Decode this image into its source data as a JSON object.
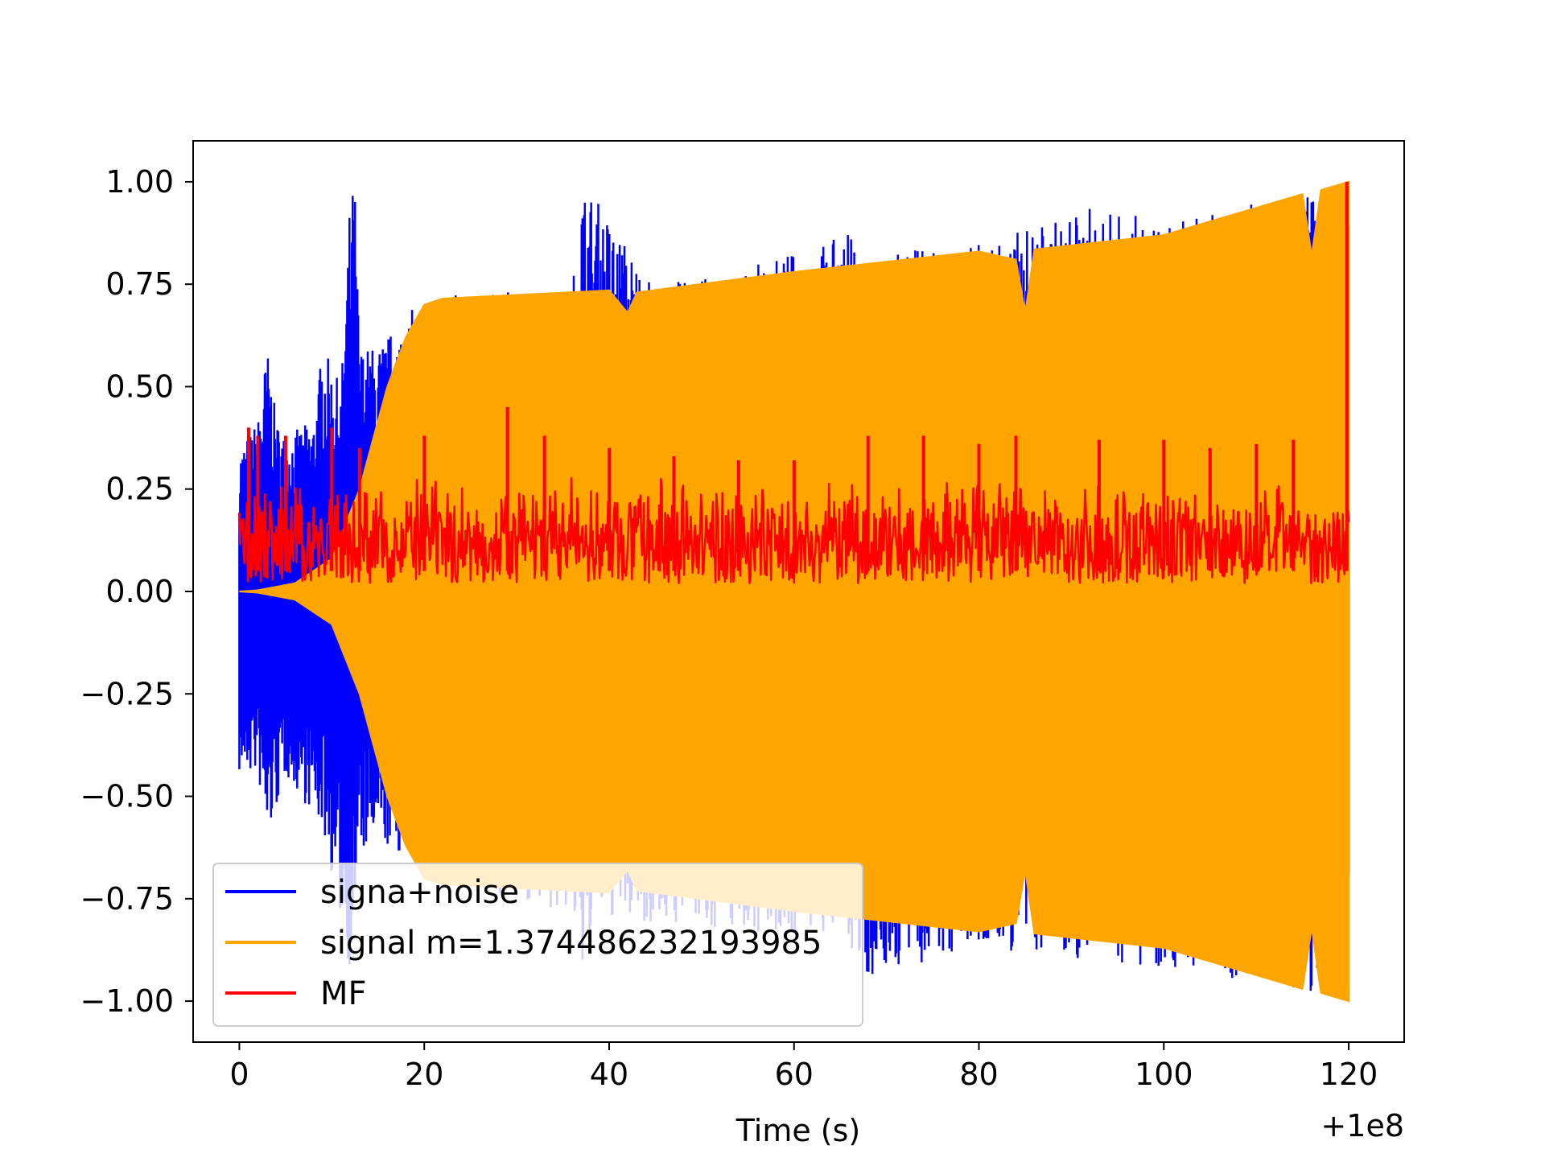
{
  "chart_data": {
    "type": "line",
    "title": "",
    "xlabel": "Time (s)",
    "ylabel": "",
    "x_offset_label": "+1e8",
    "xlim": [
      -5,
      126
    ],
    "ylim": [
      -1.1,
      1.1
    ],
    "x_ticks": [
      0,
      20,
      40,
      60,
      80,
      100,
      120
    ],
    "x_tick_labels": [
      "0",
      "20",
      "40",
      "60",
      "80",
      "100",
      "120"
    ],
    "y_ticks": [
      1.0,
      0.75,
      0.5,
      0.25,
      0.0,
      -0.25,
      -0.5,
      -0.75,
      -1.0
    ],
    "y_tick_labels": [
      "1.00",
      "0.75",
      "0.50",
      "0.25",
      "0.00",
      "−0.25",
      "−0.50",
      "−0.75",
      "−1.00"
    ],
    "grid": false,
    "legend_position": "lower-left",
    "series": [
      {
        "name": "signa+noise",
        "color": "#0000ff",
        "x_range": [
          0,
          120
        ],
        "upper_envelope": [
          [
            0,
            0.35
          ],
          [
            2,
            0.42
          ],
          [
            3,
            0.6
          ],
          [
            4,
            0.42
          ],
          [
            5,
            0.38
          ],
          [
            8,
            0.42
          ],
          [
            9,
            0.6
          ],
          [
            11,
            0.5
          ],
          [
            12,
            0.97
          ],
          [
            12.5,
            1.0
          ],
          [
            13,
            0.6
          ],
          [
            15,
            0.6
          ],
          [
            17,
            0.65
          ],
          [
            20,
            0.72
          ],
          [
            36,
            0.74
          ],
          [
            37,
            1.0
          ],
          [
            39,
            0.95
          ],
          [
            45,
            0.75
          ],
          [
            54,
            0.78
          ],
          [
            66,
            0.88
          ],
          [
            67,
            0.82
          ],
          [
            80,
            0.85
          ],
          [
            92,
            0.94
          ],
          [
            101,
            0.9
          ],
          [
            120,
            1.0
          ]
        ],
        "lower_envelope": [
          [
            0,
            -0.45
          ],
          [
            2,
            -0.45
          ],
          [
            3,
            -0.62
          ],
          [
            5,
            -0.45
          ],
          [
            9,
            -0.58
          ],
          [
            12,
            -0.93
          ],
          [
            13,
            -0.65
          ],
          [
            15,
            -0.62
          ],
          [
            20,
            -0.67
          ],
          [
            36,
            -0.8
          ],
          [
            37,
            -0.97
          ],
          [
            39,
            -0.8
          ],
          [
            66,
            -0.85
          ],
          [
            67,
            -0.95
          ],
          [
            80,
            -0.88
          ],
          [
            92,
            -0.9
          ],
          [
            101,
            -0.92
          ],
          [
            120,
            -1.0
          ]
        ]
      },
      {
        "name": "signal m=1.374486232193985",
        "color": "#ffa500",
        "x_range": [
          0,
          120
        ],
        "envelope_points": [
          [
            0,
            0.0
          ],
          [
            2,
            0.003
          ],
          [
            6,
            0.02
          ],
          [
            10,
            0.08
          ],
          [
            13,
            0.25
          ],
          [
            16,
            0.5
          ],
          [
            18,
            0.62
          ],
          [
            20,
            0.7
          ],
          [
            22,
            0.715
          ],
          [
            40,
            0.735
          ],
          [
            42,
            0.68
          ],
          [
            43,
            0.73
          ],
          [
            60,
            0.78
          ],
          [
            80,
            0.83
          ],
          [
            84,
            0.81
          ],
          [
            85,
            0.68
          ],
          [
            86,
            0.835
          ],
          [
            100,
            0.87
          ],
          [
            115,
            0.97
          ],
          [
            116,
            0.82
          ],
          [
            117,
            0.98
          ],
          [
            120,
            1.0
          ]
        ]
      },
      {
        "name": "MF",
        "color": "#ff0000",
        "x_range": [
          0,
          120
        ],
        "baseline_range": [
          0.0,
          0.28
        ],
        "peaks": [
          [
            1,
            0.4
          ],
          [
            2,
            0.38
          ],
          [
            5,
            0.38
          ],
          [
            10,
            0.4
          ],
          [
            13,
            0.35
          ],
          [
            20,
            0.38
          ],
          [
            29,
            0.45
          ],
          [
            33,
            0.38
          ],
          [
            40,
            0.35
          ],
          [
            47,
            0.33
          ],
          [
            54,
            0.32
          ],
          [
            60,
            0.32
          ],
          [
            68,
            0.38
          ],
          [
            74,
            0.38
          ],
          [
            80,
            0.36
          ],
          [
            84,
            0.38
          ],
          [
            93,
            0.37
          ],
          [
            100,
            0.37
          ],
          [
            105,
            0.35
          ],
          [
            110,
            0.36
          ],
          [
            114,
            0.37
          ],
          [
            119.8,
            1.0
          ]
        ]
      }
    ]
  }
}
